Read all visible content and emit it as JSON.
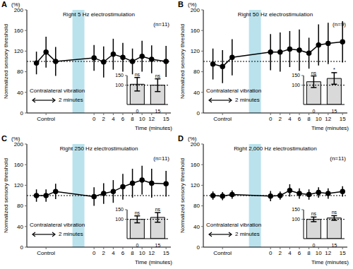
{
  "chart_data": [
    {
      "type": "line",
      "panel": "A",
      "title": "Right 5 Hz electrostimulation",
      "n_label": "(n=11)",
      "y_label": "Normalized sensory threshold",
      "y_unit": "(%)",
      "x_label": "Time (minutes)",
      "annotations": [
        "Contralateral vibration",
        "2 minutes"
      ],
      "x": [
        -12,
        -10,
        -8,
        0,
        2,
        4,
        6,
        8,
        10,
        12,
        15
      ],
      "values": [
        97,
        118,
        100,
        107,
        99,
        114,
        108,
        100,
        110,
        104,
        100
      ],
      "errors": [
        22,
        30,
        28,
        25,
        30,
        30,
        28,
        25,
        30,
        27,
        30
      ],
      "xlim": [
        -14,
        16
      ],
      "xticks": [
        {
          "value": -10,
          "label": "Control"
        },
        0,
        2,
        4,
        6,
        8,
        10,
        12,
        15
      ],
      "ylim": [
        0,
        200
      ],
      "yticks": [
        0,
        40,
        80,
        120,
        160,
        200
      ],
      "reference_line": 100,
      "vibration_range": [
        -4.5,
        -2
      ],
      "color": "#000000",
      "marker": "circle",
      "line_style": "solid",
      "grid": false,
      "inset": {
        "type": "bar",
        "categories": [
          "0",
          "15"
        ],
        "values": [
          105,
          100
        ],
        "errors": [
          35,
          33
        ],
        "labels": [
          "ns",
          "ns"
        ],
        "ylim": [
          0,
          150
        ],
        "yticks": [
          100,
          150
        ],
        "reference_line": 100,
        "color": "#d9d9d9"
      }
    },
    {
      "type": "line",
      "panel": "B",
      "title": "Right 50 Hz electrostimulation",
      "n_label": "(n=9)",
      "y_label": "Normalized sensory threshold",
      "y_unit": "(%)",
      "x_label": "Time (minutes)",
      "annotations": [
        "Contralateral vibration",
        "2 minutes"
      ],
      "x": [
        -12,
        -10,
        -8,
        0,
        2,
        4,
        6,
        8,
        10,
        12,
        15
      ],
      "values": [
        95,
        90,
        108,
        118,
        118,
        124,
        122,
        116,
        132,
        135,
        138
      ],
      "errors": [
        30,
        32,
        35,
        35,
        38,
        35,
        40,
        30,
        40,
        40,
        40
      ],
      "xlim": [
        -14,
        16
      ],
      "xticks": [
        {
          "value": -10,
          "label": "Control"
        },
        0,
        2,
        4,
        6,
        8,
        10,
        12,
        15
      ],
      "ylim": [
        0,
        200
      ],
      "yticks": [
        0,
        40,
        80,
        120,
        160,
        200
      ],
      "reference_line": 100,
      "vibration_range": [
        -4.5,
        -2
      ],
      "color": "#000000",
      "marker": "circle",
      "line_style": "solid",
      "grid": false,
      "inset": {
        "type": "bar",
        "categories": [
          "0",
          "15"
        ],
        "values": [
          118,
          135
        ],
        "errors": [
          30,
          30
        ],
        "labels": [
          "ns",
          "*"
        ],
        "ylim": [
          0,
          150
        ],
        "yticks": [
          100,
          150
        ],
        "reference_line": 100,
        "color": "#d9d9d9"
      }
    },
    {
      "type": "line",
      "panel": "C",
      "title": "Right 250 Hz electrostimulation",
      "n_label": "(n=11)",
      "y_label": "Normalized sensory threshold",
      "y_unit": "(%)",
      "x_label": "Time (minutes)",
      "annotations": [
        "Contralateral vibration",
        "2 minutes"
      ],
      "x": [
        -12,
        -10,
        -8,
        0,
        2,
        4,
        6,
        8,
        10,
        12,
        15
      ],
      "values": [
        100,
        100,
        108,
        98,
        104,
        108,
        117,
        124,
        130,
        124,
        123
      ],
      "errors": [
        12,
        12,
        15,
        18,
        20,
        22,
        25,
        28,
        28,
        28,
        25
      ],
      "xlim": [
        -14,
        16
      ],
      "xticks": [
        {
          "value": -10,
          "label": "Control"
        },
        0,
        2,
        4,
        6,
        8,
        10,
        12,
        15
      ],
      "ylim": [
        0,
        200
      ],
      "yticks": [
        0,
        40,
        80,
        120,
        160,
        200
      ],
      "reference_line": 100,
      "vibration_range": [
        -4.5,
        -2
      ],
      "color": "#000000",
      "marker": "circle",
      "line_style": "solid",
      "grid": false,
      "inset": {
        "type": "bar",
        "categories": [
          "0",
          "15"
        ],
        "values": [
          100,
          110
        ],
        "errors": [
          18,
          25
        ],
        "labels": [
          "ns",
          "ns"
        ],
        "ylim": [
          0,
          150
        ],
        "yticks": [
          100,
          150
        ],
        "reference_line": 100,
        "color": "#d9d9d9"
      }
    },
    {
      "type": "line",
      "panel": "D",
      "title": "Right 2,000 Hz electrostimulation",
      "n_label": "(n=11)",
      "y_label": "Normalized sensory threshold",
      "y_unit": "(%)",
      "x_label": "Time (minutes)",
      "annotations": [
        "Contralateral vibration",
        "2 minutes"
      ],
      "x": [
        -12,
        -10,
        -8,
        0,
        2,
        4,
        6,
        8,
        10,
        12,
        15
      ],
      "values": [
        100,
        99,
        102,
        99,
        100,
        110,
        104,
        102,
        106,
        104,
        108
      ],
      "errors": [
        8,
        8,
        8,
        10,
        8,
        12,
        10,
        10,
        10,
        10,
        10
      ],
      "xlim": [
        -14,
        16
      ],
      "xticks": [
        {
          "value": -10,
          "label": "Control"
        },
        0,
        2,
        4,
        6,
        8,
        10,
        12,
        15
      ],
      "ylim": [
        0,
        200
      ],
      "yticks": [
        0,
        40,
        80,
        120,
        160,
        200
      ],
      "reference_line": 100,
      "vibration_range": [
        -4.5,
        -2
      ],
      "color": "#000000",
      "marker": "circle",
      "line_style": "solid",
      "grid": false,
      "inset": {
        "type": "bar",
        "categories": [
          "0",
          "15"
        ],
        "values": [
          100,
          107
        ],
        "errors": [
          12,
          12
        ],
        "labels": [
          "ns",
          "ns"
        ],
        "ylim": [
          0,
          150
        ],
        "yticks": [
          100,
          150
        ],
        "reference_line": 100,
        "color": "#d9d9d9"
      }
    }
  ]
}
